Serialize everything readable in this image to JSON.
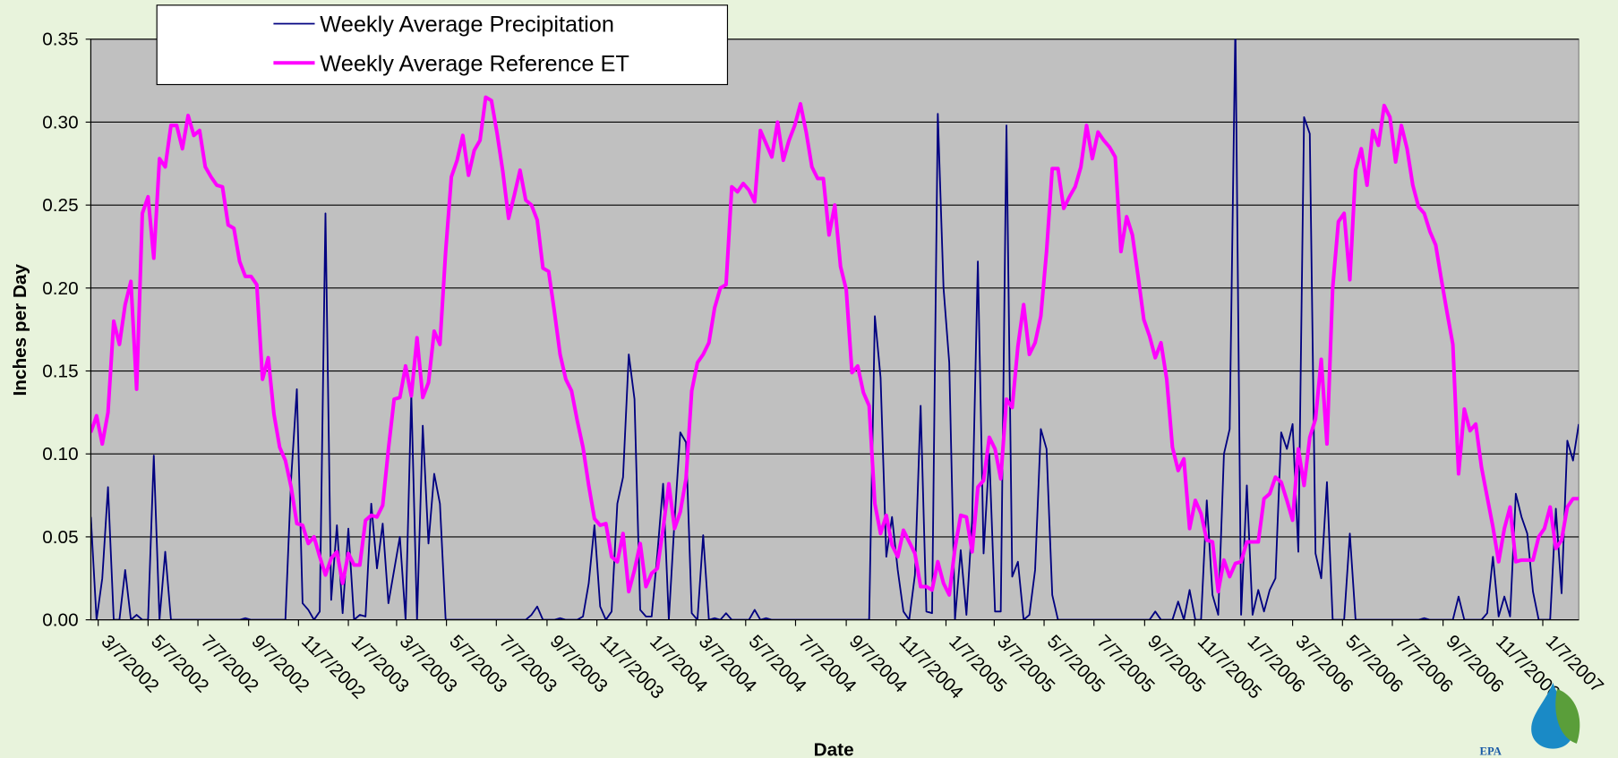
{
  "chart_data": {
    "type": "line",
    "xlabel": "Date",
    "ylabel": "Inches per Day",
    "logo_text": "EPA",
    "legend": "top-left",
    "grid": true,
    "ylim": [
      0,
      0.35
    ],
    "yticks": [
      {
        "value": 0,
        "label": "0.00"
      },
      0.05,
      {
        "value": 0.1,
        "label": "0.10"
      },
      0.15,
      {
        "value": 0.2,
        "label": "0.20"
      },
      0.25,
      {
        "value": 0.3,
        "label": "0.30"
      },
      0.35
    ],
    "xlim": [
      "2/26/2002",
      "2/20/2007"
    ],
    "xticks": [
      "3/7/2002",
      "5/7/2002",
      "7/7/2002",
      "9/7/2002",
      "11/7/2002",
      "1/7/2003",
      "3/7/2003",
      "5/7/2003",
      "7/7/2003",
      "9/7/2003",
      "11/7/2003",
      "1/7/2004",
      "3/7/2004",
      "5/7/2004",
      "7/7/2004",
      "9/7/2004",
      "11/7/2004",
      "1/7/2005",
      "3/7/2005",
      "5/7/2005",
      "7/7/2005",
      "9/7/2005",
      "11/7/2005",
      "1/7/2006",
      "3/7/2006",
      "5/7/2006",
      "7/7/2006",
      "9/7/2006",
      "11/7/2006",
      "1/7/2007"
    ],
    "x": [
      "2/26/2002",
      "3/5/2002",
      "3/12/2002",
      "3/19/2002",
      "3/26/2002",
      "4/2/2002",
      "4/9/2002",
      "4/16/2002",
      "4/23/2002",
      "4/30/2002",
      "5/7/2002",
      "5/14/2002",
      "5/21/2002",
      "5/28/2002",
      "6/4/2002",
      "6/11/2002",
      "6/18/2002",
      "6/25/2002",
      "7/2/2002",
      "7/9/2002",
      "7/16/2002",
      "7/23/2002",
      "7/30/2002",
      "8/6/2002",
      "8/13/2002",
      "8/20/2002",
      "8/27/2002",
      "9/3/2002",
      "9/10/2002",
      "9/17/2002",
      "9/24/2002",
      "10/1/2002",
      "10/8/2002",
      "10/15/2002",
      "10/22/2002",
      "10/29/2002",
      "11/5/2002",
      "11/12/2002",
      "11/19/2002",
      "11/26/2002",
      "12/3/2002",
      "12/10/2002",
      "12/17/2002",
      "12/24/2002",
      "12/31/2002",
      "1/7/2003",
      "1/14/2003",
      "1/21/2003",
      "1/28/2003",
      "2/4/2003",
      "2/11/2003",
      "2/18/2003",
      "2/25/2003",
      "3/4/2003",
      "3/11/2003",
      "3/18/2003",
      "3/25/2003",
      "4/1/2003",
      "4/8/2003",
      "4/15/2003",
      "4/22/2003",
      "4/29/2003",
      "5/6/2003",
      "5/13/2003",
      "5/20/2003",
      "5/27/2003",
      "6/3/2003",
      "6/10/2003",
      "6/17/2003",
      "6/24/2003",
      "7/1/2003",
      "7/8/2003",
      "7/15/2003",
      "7/22/2003",
      "7/29/2003",
      "8/5/2003",
      "8/12/2003",
      "8/19/2003",
      "8/26/2003",
      "9/2/2003",
      "9/9/2003",
      "9/16/2003",
      "9/23/2003",
      "9/30/2003",
      "10/7/2003",
      "10/14/2003",
      "10/21/2003",
      "10/28/2003",
      "11/4/2003",
      "11/11/2003",
      "11/18/2003",
      "11/25/2003",
      "12/2/2003",
      "12/9/2003",
      "12/16/2003",
      "12/23/2003",
      "12/30/2003",
      "1/6/2004",
      "1/13/2004",
      "1/20/2004",
      "1/27/2004",
      "2/3/2004",
      "2/10/2004",
      "2/17/2004",
      "2/24/2004",
      "3/2/2004",
      "3/9/2004",
      "3/16/2004",
      "3/23/2004",
      "3/30/2004",
      "4/6/2004",
      "4/13/2004",
      "4/20/2004",
      "4/27/2004",
      "5/4/2004",
      "5/11/2004",
      "5/18/2004",
      "5/25/2004",
      "6/1/2004",
      "6/8/2004",
      "6/15/2004",
      "6/22/2004",
      "6/29/2004",
      "7/6/2004",
      "7/13/2004",
      "7/20/2004",
      "7/27/2004",
      "8/3/2004",
      "8/10/2004",
      "8/17/2004",
      "8/24/2004",
      "8/31/2004",
      "9/7/2004",
      "9/14/2004",
      "9/21/2004",
      "9/28/2004",
      "10/5/2004",
      "10/12/2004",
      "10/19/2004",
      "10/26/2004",
      "11/2/2004",
      "11/9/2004",
      "11/16/2004",
      "11/23/2004",
      "11/30/2004",
      "12/7/2004",
      "12/14/2004",
      "12/21/2004",
      "12/28/2004",
      "1/4/2005",
      "1/11/2005",
      "1/18/2005",
      "1/25/2005",
      "2/1/2005",
      "2/8/2005",
      "2/15/2005",
      "2/22/2005",
      "3/1/2005",
      "3/8/2005",
      "3/15/2005",
      "3/22/2005",
      "3/29/2005",
      "4/5/2005",
      "4/12/2005",
      "4/19/2005",
      "4/26/2005",
      "5/3/2005",
      "5/10/2005",
      "5/17/2005",
      "5/24/2005",
      "5/31/2005",
      "6/7/2005",
      "6/14/2005",
      "6/21/2005",
      "6/28/2005",
      "7/5/2005",
      "7/12/2005",
      "7/19/2005",
      "7/26/2005",
      "8/2/2005",
      "8/9/2005",
      "8/16/2005",
      "8/23/2005",
      "8/30/2005",
      "9/6/2005",
      "9/13/2005",
      "9/20/2005",
      "9/27/2005",
      "10/4/2005",
      "10/11/2005",
      "10/18/2005",
      "10/25/2005",
      "11/1/2005",
      "11/8/2005",
      "11/15/2005",
      "11/22/2005",
      "11/29/2005",
      "12/6/2005",
      "12/13/2005",
      "12/20/2005",
      "12/27/2005",
      "1/3/2006",
      "1/10/2006",
      "1/17/2006",
      "1/24/2006",
      "1/31/2006",
      "2/7/2006",
      "2/14/2006",
      "2/21/2006",
      "2/28/2006",
      "3/7/2006",
      "3/14/2006",
      "3/21/2006",
      "3/28/2006",
      "4/4/2006",
      "4/11/2006",
      "4/18/2006",
      "4/25/2006",
      "5/2/2006",
      "5/9/2006",
      "5/16/2006",
      "5/23/2006",
      "5/30/2006",
      "6/6/2006",
      "6/13/2006",
      "6/20/2006",
      "6/27/2006",
      "7/4/2006",
      "7/11/2006",
      "7/18/2006",
      "7/25/2006",
      "8/1/2006",
      "8/8/2006",
      "8/15/2006",
      "8/22/2006",
      "8/29/2006",
      "9/5/2006",
      "9/12/2006",
      "9/19/2006",
      "9/26/2006",
      "10/3/2006",
      "10/10/2006",
      "10/17/2006",
      "10/24/2006",
      "10/31/2006",
      "11/7/2006",
      "11/14/2006",
      "11/21/2006",
      "11/28/2006",
      "12/5/2006",
      "12/12/2006",
      "12/19/2006",
      "12/26/2006",
      "1/2/2007",
      "1/9/2007",
      "1/16/2007",
      "1/23/2007",
      "1/30/2007",
      "2/6/2007",
      "2/13/2007",
      "2/20/2007"
    ],
    "series": [
      {
        "name": "Weekly Average Precipitation",
        "color": "#000080",
        "width": 1.6,
        "values": [
          0.062,
          0,
          0.025,
          0.08,
          0,
          0,
          0.03,
          0,
          0.003,
          0,
          0,
          0.099,
          0,
          0.041,
          0,
          0,
          0,
          0,
          0,
          0,
          0,
          0,
          0,
          0,
          0,
          0,
          0,
          0.001,
          0,
          0,
          0,
          0,
          0,
          0,
          0,
          0.085,
          0.139,
          0.01,
          0.006,
          0,
          0.005,
          0.245,
          0.012,
          0.057,
          0.004,
          0.055,
          0,
          0.003,
          0.002,
          0.07,
          0.031,
          0.058,
          0.01,
          0.03,
          0.05,
          0,
          0.136,
          0,
          0.117,
          0.046,
          0.088,
          0.07,
          0,
          0,
          0,
          0,
          0,
          0,
          0,
          0,
          0,
          0,
          0,
          0,
          0,
          0,
          0,
          0.003,
          0.008,
          0,
          0,
          0,
          0.001,
          0,
          0,
          0,
          0.002,
          0.022,
          0.057,
          0.008,
          0,
          0.005,
          0.07,
          0.086,
          0.16,
          0.133,
          0.006,
          0.002,
          0.002,
          0.04,
          0.082,
          0,
          0.06,
          0.113,
          0.107,
          0.004,
          0,
          0.051,
          0,
          0.001,
          0,
          0.004,
          0,
          0,
          0,
          0,
          0.006,
          0,
          0.001,
          0,
          0,
          0,
          0,
          0,
          0,
          0,
          0,
          0,
          0,
          0,
          0,
          0,
          0,
          0,
          0,
          0,
          0,
          0.183,
          0.146,
          0.038,
          0.062,
          0.03,
          0.005,
          0,
          0.027,
          0.129,
          0.005,
          0.004,
          0.305,
          0.2,
          0.155,
          0,
          0.042,
          0.003,
          0.06,
          0.216,
          0.04,
          0.1,
          0.005,
          0.005,
          0.298,
          0.026,
          0.035,
          0,
          0.003,
          0.03,
          0.115,
          0.103,
          0.015,
          0,
          0,
          0,
          0,
          0,
          0,
          0,
          0,
          0,
          0,
          0,
          0,
          0,
          0,
          0,
          0,
          0,
          0.005,
          0,
          0,
          0,
          0.011,
          0,
          0.018,
          0,
          0,
          0.072,
          0.015,
          0.003,
          0.1,
          0.115,
          0.36,
          0.003,
          0.081,
          0.003,
          0.018,
          0.005,
          0.018,
          0.025,
          0.113,
          0.103,
          0.118,
          0.041,
          0.303,
          0.293,
          0.04,
          0.025,
          0.083,
          0,
          0,
          0,
          0.052,
          0,
          0,
          0,
          0,
          0,
          0,
          0,
          0,
          0,
          0,
          0,
          0,
          0.001,
          0,
          0,
          0,
          0,
          0,
          0.014,
          0,
          0,
          0,
          0,
          0.004,
          0.038,
          0.002,
          0.014,
          0.002,
          0.076,
          0.062,
          0.052,
          0.017,
          0,
          0,
          0,
          0.067,
          0.016,
          0.108,
          0.096,
          0.118
        ]
      },
      {
        "name": "Weekly Average Reference ET",
        "color": "#ff00ff",
        "width": 3.5,
        "values": [
          0.113,
          0.123,
          0.106,
          0.125,
          0.18,
          0.166,
          0.19,
          0.204,
          0.139,
          0.245,
          0.255,
          0.218,
          0.278,
          0.273,
          0.298,
          0.298,
          0.284,
          0.304,
          0.292,
          0.295,
          0.273,
          0.267,
          0.262,
          0.261,
          0.238,
          0.236,
          0.216,
          0.207,
          0.207,
          0.202,
          0.145,
          0.158,
          0.124,
          0.104,
          0.096,
          0.08,
          0.058,
          0.057,
          0.046,
          0.05,
          0.038,
          0.027,
          0.037,
          0.041,
          0.022,
          0.04,
          0.033,
          0.033,
          0.06,
          0.063,
          0.062,
          0.069,
          0.103,
          0.133,
          0.134,
          0.153,
          0.135,
          0.17,
          0.134,
          0.143,
          0.174,
          0.166,
          0.222,
          0.267,
          0.277,
          0.292,
          0.268,
          0.283,
          0.289,
          0.315,
          0.313,
          0.293,
          0.27,
          0.242,
          0.256,
          0.271,
          0.253,
          0.25,
          0.241,
          0.212,
          0.21,
          0.186,
          0.16,
          0.145,
          0.138,
          0.12,
          0.104,
          0.081,
          0.061,
          0.057,
          0.058,
          0.038,
          0.035,
          0.052,
          0.017,
          0.03,
          0.046,
          0.02,
          0.028,
          0.031,
          0.055,
          0.082,
          0.055,
          0.065,
          0.085,
          0.138,
          0.155,
          0.16,
          0.167,
          0.188,
          0.2,
          0.202,
          0.261,
          0.258,
          0.263,
          0.259,
          0.252,
          0.295,
          0.287,
          0.279,
          0.3,
          0.277,
          0.289,
          0.298,
          0.311,
          0.294,
          0.273,
          0.266,
          0.266,
          0.232,
          0.25,
          0.213,
          0.199,
          0.149,
          0.153,
          0.137,
          0.129,
          0.07,
          0.052,
          0.063,
          0.045,
          0.038,
          0.054,
          0.047,
          0.04,
          0.02,
          0.02,
          0.018,
          0.035,
          0.022,
          0.015,
          0.043,
          0.063,
          0.062,
          0.041,
          0.08,
          0.084,
          0.11,
          0.103,
          0.085,
          0.133,
          0.128,
          0.165,
          0.19,
          0.16,
          0.167,
          0.183,
          0.222,
          0.272,
          0.272,
          0.248,
          0.255,
          0.261,
          0.273,
          0.298,
          0.278,
          0.294,
          0.289,
          0.285,
          0.279,
          0.222,
          0.243,
          0.232,
          0.207,
          0.181,
          0.171,
          0.158,
          0.167,
          0.145,
          0.104,
          0.09,
          0.097,
          0.055,
          0.072,
          0.064,
          0.048,
          0.047,
          0.017,
          0.036,
          0.026,
          0.034,
          0.035,
          0.047,
          0.047,
          0.047,
          0.073,
          0.076,
          0.086,
          0.083,
          0.072,
          0.06,
          0.103,
          0.081,
          0.11,
          0.121,
          0.157,
          0.106,
          0.2,
          0.24,
          0.245,
          0.205,
          0.271,
          0.284,
          0.262,
          0.295,
          0.286,
          0.31,
          0.303,
          0.276,
          0.298,
          0.284,
          0.262,
          0.249,
          0.245,
          0.234,
          0.226,
          0.205,
          0.185,
          0.166,
          0.088,
          0.127,
          0.114,
          0.118,
          0.092,
          0.074,
          0.056,
          0.035,
          0.055,
          0.068,
          0.035,
          0.036,
          0.036,
          0.036,
          0.05,
          0.055,
          0.068,
          0.043,
          0.048,
          0.068,
          0.073,
          0.073
        ]
      }
    ]
  }
}
